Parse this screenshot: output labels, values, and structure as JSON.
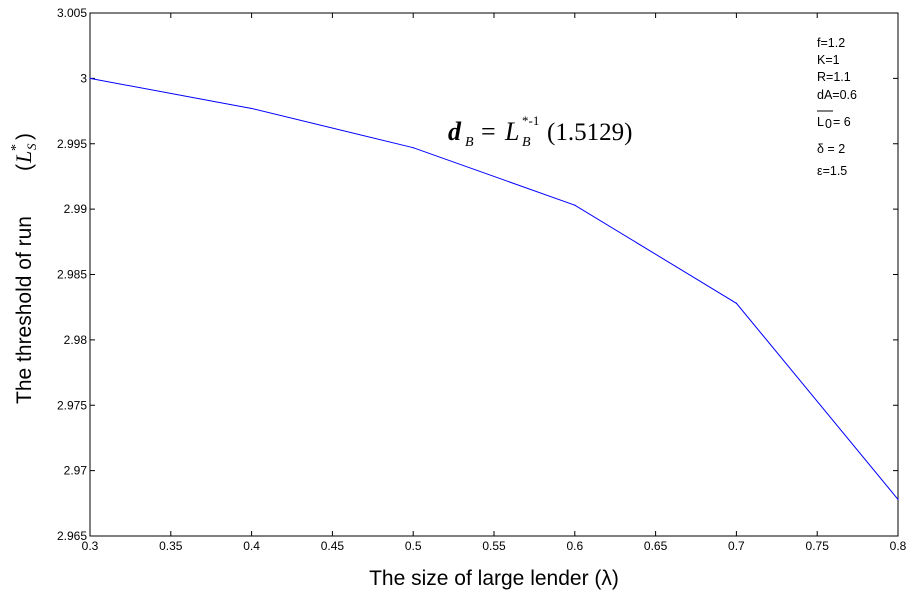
{
  "chart_data": {
    "type": "line",
    "title": "",
    "xlabel": "The size of large lender (λ)",
    "ylabel": "The threshold of run",
    "ylabel_symbol": {
      "base": "L",
      "sup": "*",
      "sub": "S"
    },
    "xlim": [
      0.3,
      0.8
    ],
    "ylim": [
      2.965,
      3.005
    ],
    "xticks": [
      0.3,
      0.35,
      0.4,
      0.45,
      0.5,
      0.55,
      0.6,
      0.65,
      0.7,
      0.75,
      0.8
    ],
    "yticks": [
      2.965,
      2.97,
      2.975,
      2.98,
      2.985,
      2.99,
      2.995,
      3,
      3.005
    ],
    "xtick_labels": [
      "0.3",
      "0.35",
      "0.4",
      "0.45",
      "0.5",
      "0.55",
      "0.6",
      "0.65",
      "0.7",
      "0.75",
      "0.8"
    ],
    "ytick_labels": [
      "2.965",
      "2.97",
      "2.975",
      "2.98",
      "2.985",
      "2.99",
      "2.995",
      "3",
      "3.005"
    ],
    "grid": false,
    "series": [
      {
        "color": "#0000ff",
        "x": [
          0.3,
          0.4,
          0.5,
          0.6,
          0.7,
          0.8
        ],
        "y": [
          3.0,
          2.9977,
          2.9947,
          2.9903,
          2.9828,
          2.9678
        ]
      }
    ],
    "annotation": {
      "lhs": "d",
      "lhs_sub": "B",
      "eq": "=",
      "rhs": "L",
      "rhs_sup": "*-1",
      "rhs_sub": "B",
      "arg": "(1.5129)"
    },
    "parameters": {
      "f": "f=1.2",
      "K": "K=1",
      "R": "R=1.1",
      "dA": "dA=0.6",
      "L0_base": "L",
      "L0_sub": "0",
      "L0_value": " = 6",
      "delta": "δ = 2",
      "epsilon": "ε=1.5"
    }
  }
}
